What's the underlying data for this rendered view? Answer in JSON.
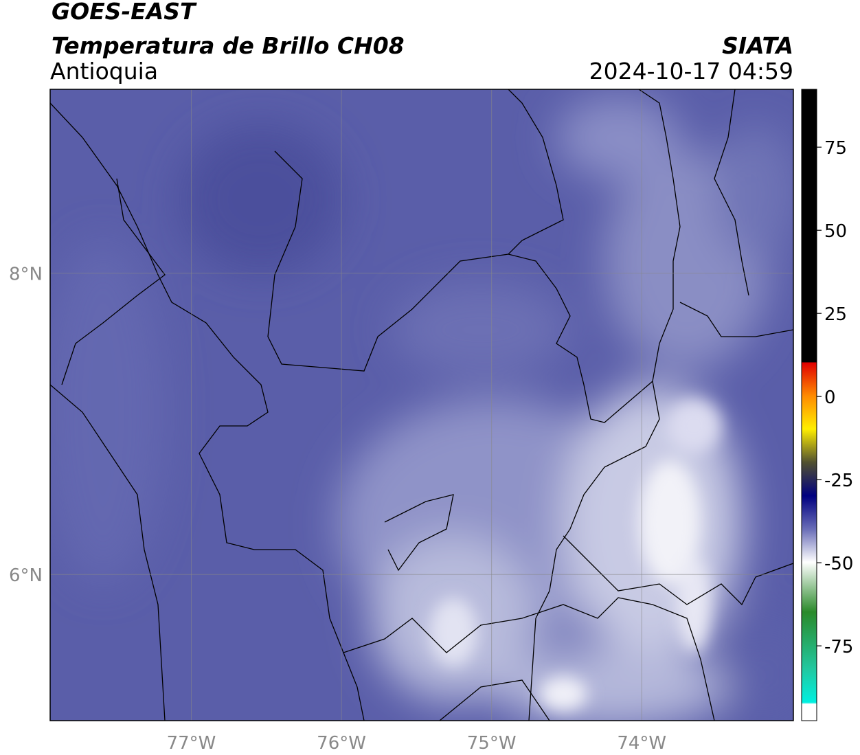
{
  "header": {
    "satellite": "GOES-EAST",
    "product": "Temperatura de Brillo CH08",
    "region": "Antioquia",
    "agency": "SIATA",
    "timestamp": "2024-10-17 04:59"
  },
  "map": {
    "xlim": [
      -77.94,
      -72.99
    ],
    "ylim": [
      5.03,
      9.22
    ],
    "xticks": [
      {
        "value": -77,
        "label": "77°W"
      },
      {
        "value": -76,
        "label": "76°W"
      },
      {
        "value": -75,
        "label": "75°W"
      },
      {
        "value": -74,
        "label": "74°W"
      }
    ],
    "yticks": [
      {
        "value": 6,
        "label": "6°N"
      },
      {
        "value": 8,
        "label": "8°N"
      }
    ]
  },
  "colorbar": {
    "lim": [
      -97.5,
      92.4
    ],
    "ticks": [
      -75,
      -50,
      -25,
      0,
      25,
      50,
      75
    ]
  }
}
